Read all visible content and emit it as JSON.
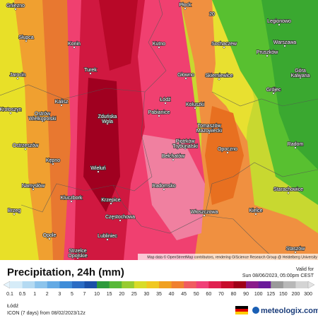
{
  "map": {
    "places": [
      {
        "label": "Gniezno"
      },
      {
        "label": "Płock"
      },
      {
        "label": "20"
      },
      {
        "label": "Legionowo"
      },
      {
        "label": "Słupca"
      },
      {
        "label": "Konin"
      },
      {
        "label": "Kutno"
      },
      {
        "label": "Sochaczew"
      },
      {
        "label": "Warszawa"
      },
      {
        "label": "Pruszków"
      },
      {
        "label": "Turek"
      },
      {
        "label": "Głowno"
      },
      {
        "label": "Skierniewice"
      },
      {
        "label": "Góra Kalwaria"
      },
      {
        "label": "Jarocin"
      },
      {
        "label": "Grójec"
      },
      {
        "label": "Kalisz"
      },
      {
        "label": "Łódź"
      },
      {
        "label": "Koluszki"
      },
      {
        "label": "Krotoszyn"
      },
      {
        "label": "Ostrów Wielkopolski"
      },
      {
        "label": "Zduńska Wola"
      },
      {
        "label": "Pabianice"
      },
      {
        "label": "Tomaszów Mazowiecki"
      },
      {
        "label": "Piotrków Trybunalski"
      },
      {
        "label": "Radom"
      },
      {
        "label": "Ostrzeszów"
      },
      {
        "label": "Kępno"
      },
      {
        "label": "Opoczno"
      },
      {
        "label": "Wieluń"
      },
      {
        "label": "Bełchatów"
      },
      {
        "label": "Namysłów"
      },
      {
        "label": "Kluczbork"
      },
      {
        "label": "Krzepice"
      },
      {
        "label": "Radomsko"
      },
      {
        "label": "Starachowice"
      },
      {
        "label": "Brzeg"
      },
      {
        "label": "Włoszczowa"
      },
      {
        "label": "Kielce"
      },
      {
        "label": "Częstochowa"
      },
      {
        "label": "Opole"
      },
      {
        "label": "Lubliniec"
      },
      {
        "label": "Strzelce Opolskie"
      },
      {
        "label": "Staszów"
      }
    ],
    "attribution": "Map data © OpenStreetMap contributors, rendering GIScience Research Group @ Heidelberg University"
  },
  "footer": {
    "title": "Precipitation, 24h (mm)",
    "valid_label": "Valid for",
    "valid_time": "Sun 08/06/2023, 05:00pm CEST",
    "legend": {
      "labels": [
        "0.1",
        "0.5",
        "1",
        "2",
        "3",
        "5",
        "7",
        "10",
        "15",
        "20",
        "25",
        "30",
        "35",
        "40",
        "45",
        "50",
        "60",
        "70",
        "80",
        "90",
        "100",
        "125",
        "150",
        "200",
        "300"
      ],
      "colors": [
        "#d6ecf8",
        "#b4daf2",
        "#8cc4ec",
        "#64aae4",
        "#3e8cd8",
        "#2a6cc4",
        "#1a50a8",
        "#2c9a3c",
        "#58b838",
        "#98cc30",
        "#d8dc28",
        "#f0c820",
        "#f0a020",
        "#f08030",
        "#f05c60",
        "#f04078",
        "#e02050",
        "#c80c2c",
        "#a00018",
        "#8a1a8a",
        "#6a1a9a",
        "#9a9a9a",
        "#b8b8b8",
        "#d4d4d4"
      ]
    },
    "location": "Łódź",
    "model": "ICON (7 days)  from  08/02/2023/12z",
    "brand": "meteologix.com"
  }
}
